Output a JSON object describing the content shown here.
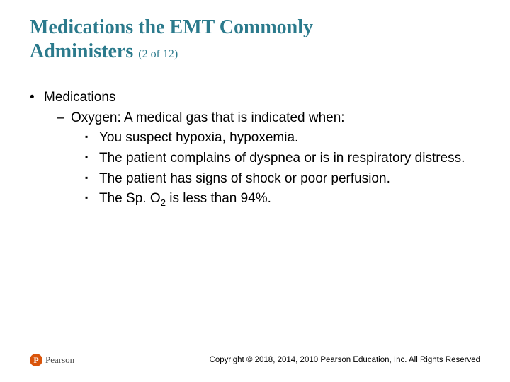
{
  "title_line1": "Medications the EMT Commonly",
  "title_line2": "Administers",
  "page_of": "(2 of 12)",
  "bullets": {
    "lvl1": "Medications",
    "lvl2": "Oxygen: A medical gas that is indicated when:",
    "lvl3_1": "You suspect hypoxia, hypoxemia.",
    "lvl3_2": "The patient complains of dyspnea or is in respiratory distress.",
    "lvl3_3": "The patient has signs of shock or poor perfusion.",
    "lvl3_4_pre": "The Sp. O",
    "lvl3_4_sub": "2",
    "lvl3_4_post": " is less than 94%."
  },
  "footer": {
    "logo_letter": "P",
    "logo_text": "Pearson",
    "copyright": "Copyright © 2018, 2014, 2010 Pearson Education, Inc. All Rights Reserved"
  },
  "colors": {
    "title": "#2b7a8c",
    "text": "#000000",
    "logo_bg": "#d9540a",
    "background": "#ffffff"
  }
}
